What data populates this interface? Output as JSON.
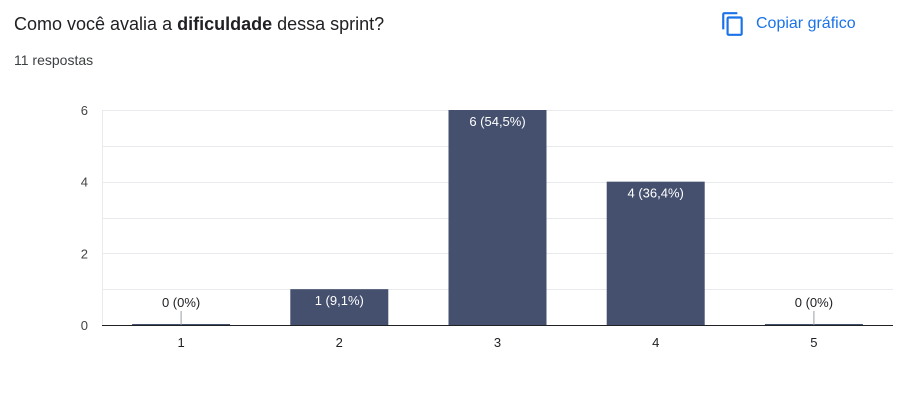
{
  "question": {
    "prefix": "Como você avalia a ",
    "emphasis": "dificuldade",
    "suffix": " dessa sprint?"
  },
  "responses_count": "11 respostas",
  "copy_button": {
    "label": "Copiar gráfico",
    "icon": "copy-icon"
  },
  "colors": {
    "bar": "#44506e",
    "accent": "#1a73e8",
    "grid": "#e8eaed",
    "axis": "#202124"
  },
  "chart_data": {
    "type": "bar",
    "categories": [
      "1",
      "2",
      "3",
      "4",
      "5"
    ],
    "values": [
      0,
      1,
      6,
      4,
      0
    ],
    "data_labels": [
      "0 (0%)",
      "1 (9,1%)",
      "6 (54,5%)",
      "4 (36,4%)",
      "0 (0%)"
    ],
    "yticks": [
      "0",
      "2",
      "4",
      "6"
    ],
    "ylim": [
      0,
      6
    ],
    "grid": true,
    "title": "",
    "xlabel": "",
    "ylabel": ""
  }
}
